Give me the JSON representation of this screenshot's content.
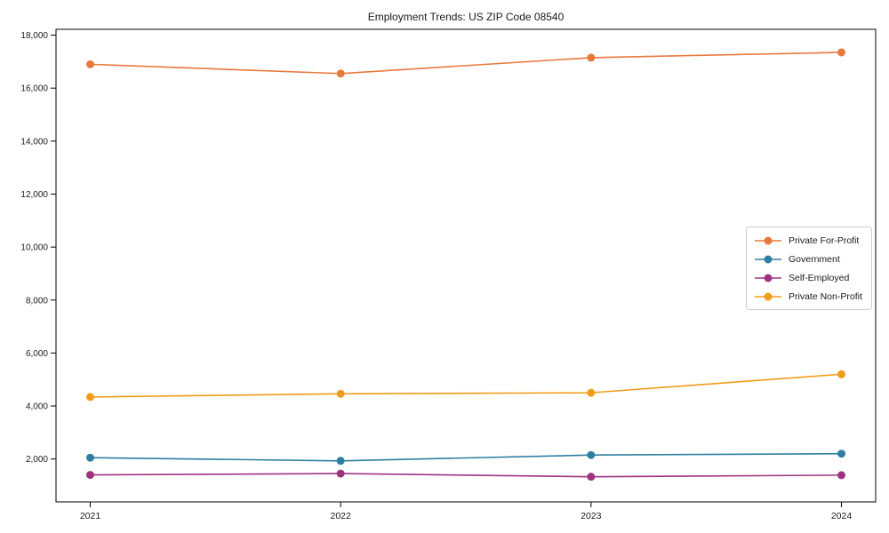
{
  "chart_data": {
    "type": "line",
    "title": "Employment Trends: US ZIP Code 08540",
    "x_labels": [
      "2021",
      "2022",
      "2023",
      "2024"
    ],
    "x": [
      2021,
      2022,
      2023,
      2024
    ],
    "yticks": [
      2000,
      4000,
      6000,
      8000,
      10000,
      12000,
      14000,
      16000,
      18000
    ],
    "y_tick_labels": [
      "2,000",
      "4,000",
      "6,000",
      "8,000",
      "10,000",
      "12,000",
      "14,000",
      "16,000",
      "18,000"
    ],
    "ylim": [
      380,
      18220
    ],
    "grid": false,
    "legend_position": "center-right",
    "marker": "circle",
    "colors": {
      "background": "#ffffff",
      "axis": "#000000",
      "text": "#1a1a1a",
      "legend_border": "#cccccc"
    },
    "series": [
      {
        "name": "Private For-Profit",
        "color": "#E8793D",
        "values": [
          16900,
          16550,
          17150,
          17350
        ]
      },
      {
        "name": "Government",
        "color": "#2E7FA1",
        "values": [
          2050,
          1930,
          2150,
          2200
        ]
      },
      {
        "name": "Self-Employed",
        "color": "#9E3480",
        "values": [
          1400,
          1450,
          1330,
          1390
        ]
      },
      {
        "name": "Private Non-Profit",
        "color": "#F09C1A",
        "values": [
          4340,
          4460,
          4500,
          5200
        ]
      }
    ]
  }
}
